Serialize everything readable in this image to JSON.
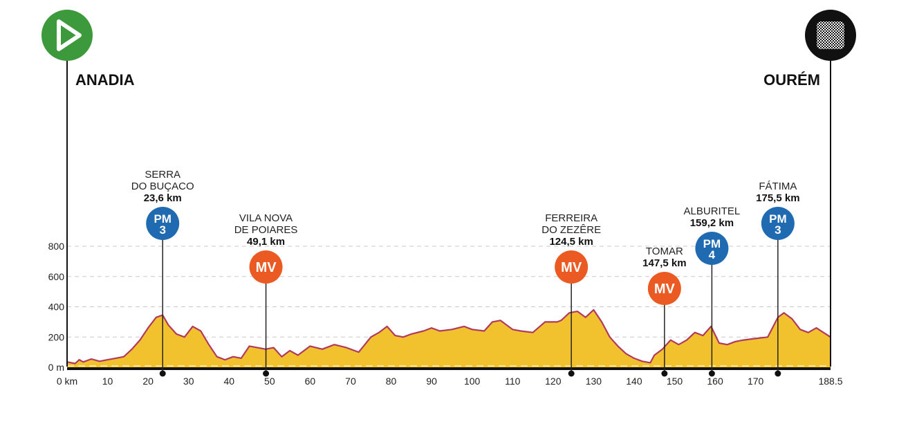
{
  "chart_data": {
    "type": "area",
    "start_label": "ANADIA",
    "finish_label": "OURÉM",
    "x_unit_label": "0 km",
    "x_tick_labels": [
      "10",
      "20",
      "30",
      "40",
      "50",
      "60",
      "70",
      "80",
      "90",
      "100",
      "110",
      "120",
      "130",
      "140",
      "150",
      "160",
      "170",
      "188.5"
    ],
    "y_ticks": [
      {
        "value": 0,
        "label": "0 m"
      },
      {
        "value": 200,
        "label": "200"
      },
      {
        "value": 400,
        "label": "400"
      },
      {
        "value": 600,
        "label": "600"
      },
      {
        "value": 800,
        "label": "800"
      }
    ],
    "xlim": [
      0,
      188.5
    ],
    "ylim": [
      0,
      800
    ],
    "grid": true,
    "colors": {
      "start": "#3c9a3c",
      "finish": "#111111",
      "profile_fill": "#f2c22e",
      "profile_line": "#b03a5e",
      "mountain": "#1f6ab0",
      "sprint": "#ec5a24"
    },
    "elevation_profile": {
      "x": [
        0,
        2,
        3,
        4,
        6,
        8,
        10,
        12,
        14,
        16,
        18,
        20,
        22,
        23.6,
        25,
        27,
        29,
        31,
        33,
        35,
        37,
        39,
        41,
        43,
        45,
        47,
        49,
        51,
        53,
        55,
        57,
        60,
        63,
        66,
        69,
        72,
        75,
        77,
        79,
        81,
        83,
        85,
        88,
        90,
        92,
        95,
        98,
        100,
        103,
        105,
        107,
        110,
        112,
        115,
        118,
        121,
        122,
        124,
        126,
        128,
        130,
        132,
        134,
        136,
        138,
        140,
        142,
        144,
        145,
        147,
        149,
        151,
        153,
        155,
        157,
        159,
        161,
        163,
        165,
        167,
        170,
        173,
        175.5,
        177,
        179,
        181,
        183,
        185,
        188.5
      ],
      "y": [
        35,
        25,
        50,
        35,
        55,
        40,
        50,
        60,
        70,
        120,
        180,
        260,
        330,
        345,
        280,
        220,
        200,
        270,
        240,
        150,
        70,
        50,
        70,
        60,
        140,
        130,
        120,
        130,
        70,
        110,
        80,
        140,
        120,
        150,
        130,
        100,
        200,
        230,
        270,
        210,
        200,
        220,
        240,
        260,
        240,
        250,
        270,
        250,
        240,
        300,
        310,
        250,
        240,
        230,
        300,
        300,
        310,
        360,
        370,
        330,
        380,
        300,
        200,
        140,
        90,
        60,
        40,
        30,
        80,
        120,
        180,
        150,
        180,
        230,
        210,
        270,
        160,
        150,
        170,
        180,
        190,
        200,
        330,
        360,
        320,
        250,
        230,
        260,
        200
      ]
    },
    "markers": [
      {
        "type": "PM",
        "badge_top": "PM",
        "badge_bottom": "3",
        "name_lines": [
          "SERRA",
          "DO BUÇACO"
        ],
        "km_value": 23.6,
        "km_label": "23,6 km"
      },
      {
        "type": "MV",
        "badge_top": "MV",
        "badge_bottom": "",
        "name_lines": [
          "VILA NOVA",
          "DE POIARES"
        ],
        "km_value": 49.1,
        "km_label": "49,1 km"
      },
      {
        "type": "MV",
        "badge_top": "MV",
        "badge_bottom": "",
        "name_lines": [
          "FERREIRA",
          "DO ZEZÊRE"
        ],
        "km_value": 124.5,
        "km_label": "124,5 km"
      },
      {
        "type": "MV",
        "badge_top": "MV",
        "badge_bottom": "",
        "name_lines": [
          "TOMAR"
        ],
        "km_value": 147.5,
        "km_label": "147,5 km"
      },
      {
        "type": "PM",
        "badge_top": "PM",
        "badge_bottom": "4",
        "name_lines": [
          "ALBURITEL"
        ],
        "km_value": 159.2,
        "km_label": "159,2 km"
      },
      {
        "type": "PM",
        "badge_top": "PM",
        "badge_bottom": "3",
        "name_lines": [
          "FÁTIMA"
        ],
        "km_value": 175.5,
        "km_label": "175,5 km"
      }
    ]
  }
}
